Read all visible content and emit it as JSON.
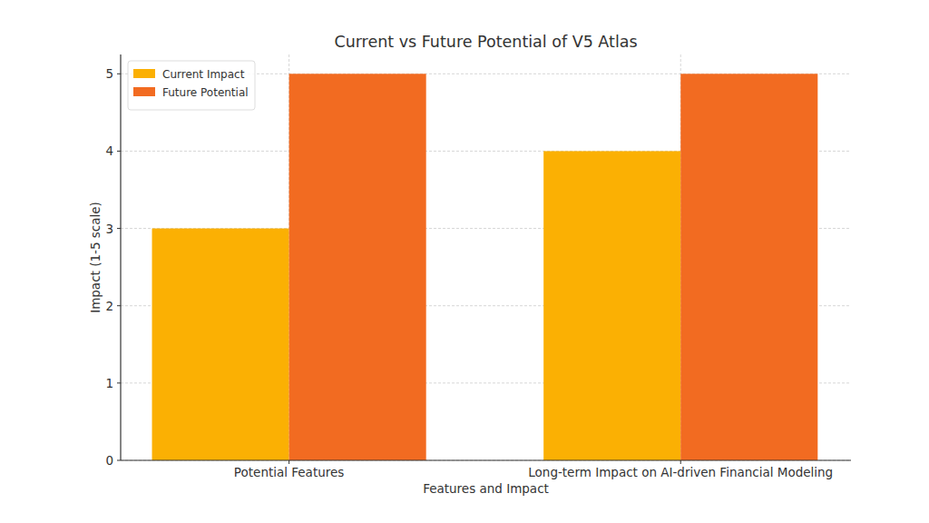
{
  "chart_data": {
    "type": "bar",
    "title": "Current vs Future Potential of V5 Atlas",
    "x_label": "Features and Impact",
    "y_label": "Impact (1-5 scale)",
    "categories": [
      "Potential Features",
      "Long-term Impact on AI-driven Financial Modeling"
    ],
    "series": [
      {
        "name": "Current Impact",
        "color": "#fbb003",
        "values": [
          3,
          4
        ]
      },
      {
        "name": "Future Potential",
        "color": "#f26b21",
        "values": [
          5,
          5
        ]
      }
    ],
    "ylim": [
      0,
      5.25
    ],
    "yticks": [
      0,
      1,
      2,
      3,
      4,
      5
    ],
    "grid": true,
    "legend": "upper left"
  }
}
